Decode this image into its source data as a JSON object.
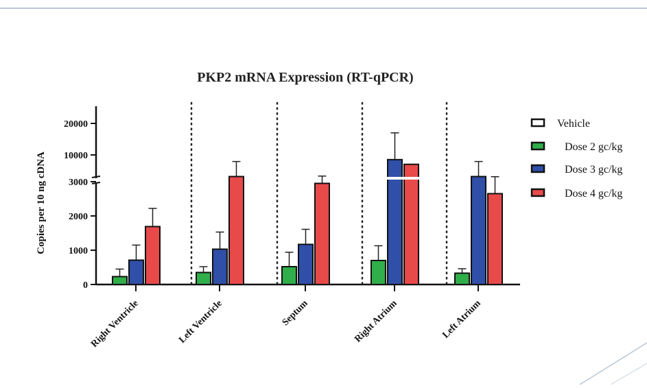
{
  "chart_data": {
    "type": "bar",
    "title": "PKP2 mRNA Expression (RT-qPCR)",
    "ylabel": "Copies per 10 ng cDNA",
    "xlabel": "",
    "y_axis": {
      "type": "broken",
      "lower_segment": [
        0,
        3000
      ],
      "upper_segment": [
        3000,
        20000
      ],
      "lower_ticks": [
        "0",
        "1000",
        "2000",
        "3000"
      ],
      "upper_ticks": [
        "10000",
        "20000"
      ]
    },
    "categories": [
      "Right Ventricle",
      "Left Ventricle",
      "Septum",
      "Right Atrium",
      "Left Atrium"
    ],
    "series": [
      {
        "name": "Vehicle",
        "color": "#ffffff",
        "values": [
          0,
          0,
          0,
          0,
          0
        ],
        "errors": [
          0,
          0,
          0,
          0,
          0
        ]
      },
      {
        "name": "Dose 2 gc/kg",
        "color": "#2fae4a",
        "values": [
          230,
          350,
          520,
          700,
          330
        ],
        "errors": [
          220,
          170,
          420,
          430,
          130
        ]
      },
      {
        "name": "Dose 3 gc/kg",
        "color": "#2f4fa8",
        "values": [
          710,
          1030,
          1170,
          8500,
          3100
        ],
        "errors": [
          440,
          500,
          440,
          8500,
          4800
        ]
      },
      {
        "name": "Dose 4 gc/kg",
        "color": "#e84a4a",
        "values": [
          1690,
          3100,
          2950,
          7000,
          2650
        ],
        "errors": [
          530,
          4800,
          300,
          0,
          400
        ]
      }
    ],
    "separators": "dotted vertical lines between categories",
    "legend_position": "right",
    "grid": false
  }
}
